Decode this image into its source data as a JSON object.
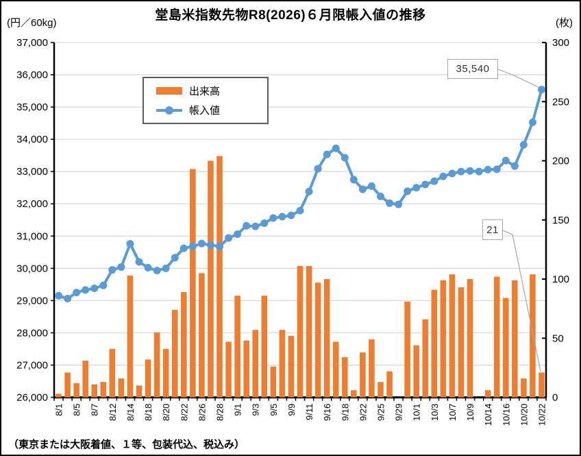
{
  "chart_data": {
    "type": "combo-bar-line",
    "title": "堂島米指数先物R8(2026)６月限帳入値の推移",
    "footnote": "（東京または大阪着値、１等、包装代込、税込み）",
    "grid": "horizontal",
    "legend_position": "upper-left-inside",
    "left_axis": {
      "unit": "(円／60kg)",
      "min": 26000,
      "max": 37000,
      "step": 1000
    },
    "right_axis": {
      "unit": "(枚)",
      "min": 0,
      "max": 300,
      "step": 50
    },
    "x_label_every": 2,
    "categories": [
      "8/1",
      "8/4",
      "8/5",
      "8/6",
      "8/7",
      "8/8",
      "8/12",
      "8/13",
      "8/14",
      "8/15",
      "8/18",
      "8/19",
      "8/20",
      "8/21",
      "8/22",
      "8/25",
      "8/26",
      "8/27",
      "8/28",
      "8/29",
      "9/1",
      "9/2",
      "9/3",
      "9/4",
      "9/5",
      "9/8",
      "9/9",
      "9/10",
      "9/11",
      "9/12",
      "9/16",
      "9/17",
      "9/18",
      "9/19",
      "9/22",
      "9/24",
      "9/25",
      "9/26",
      "9/29",
      "9/30",
      "10/1",
      "10/2",
      "10/3",
      "10/6",
      "10/7",
      "10/8",
      "10/9",
      "10/10",
      "10/14",
      "10/15",
      "10/16",
      "10/17",
      "10/20",
      "10/21",
      "10/22"
    ],
    "series": [
      {
        "name": "出来高",
        "type": "bar",
        "axis": "right",
        "color": "#ED7D31",
        "values": [
          3,
          21,
          12,
          31,
          11,
          13,
          41,
          16,
          103,
          10,
          32,
          55,
          41,
          74,
          89,
          193,
          105,
          200,
          204,
          47,
          86,
          48,
          57,
          86,
          26,
          57,
          52,
          111,
          111,
          97,
          100,
          47,
          34,
          6,
          38,
          49,
          13,
          22,
          0,
          81,
          44,
          66,
          91,
          99,
          104,
          93,
          100,
          0,
          6,
          102,
          84,
          99,
          16,
          104,
          21
        ]
      },
      {
        "name": "帳入値",
        "type": "line",
        "axis": "left",
        "color": "#5B9BD5",
        "values": [
          29150,
          29060,
          29250,
          29330,
          29380,
          29470,
          29950,
          30040,
          30760,
          30200,
          30020,
          29930,
          30000,
          30330,
          30620,
          30680,
          30770,
          30720,
          30680,
          30940,
          31060,
          31320,
          31300,
          31400,
          31560,
          31600,
          31640,
          31790,
          32380,
          33090,
          33530,
          33720,
          33430,
          32750,
          32450,
          32550,
          32230,
          32020,
          31980,
          32390,
          32500,
          32600,
          32700,
          32850,
          32940,
          33000,
          33020,
          33000,
          33060,
          33070,
          33340,
          33170,
          33830,
          34530,
          35540
        ]
      }
    ],
    "annotations": [
      {
        "label": "35,540",
        "series": "帳入値",
        "category": "10/22"
      },
      {
        "label": "21",
        "series": "出来高",
        "category": "10/22"
      }
    ],
    "colors": {
      "grid": "#D9D9D9",
      "axis": "#000000",
      "leader": "#A6A6A6"
    }
  }
}
